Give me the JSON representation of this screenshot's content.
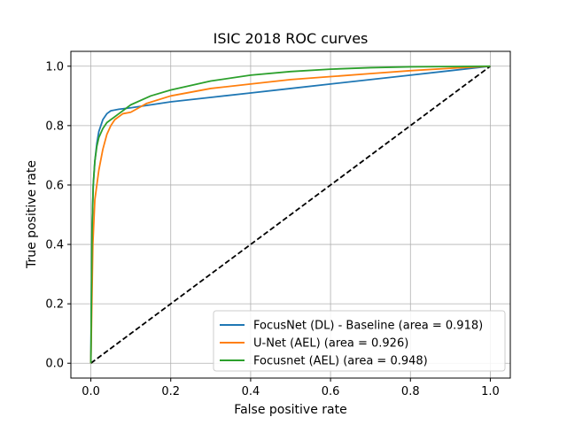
{
  "chart_data": {
    "type": "line",
    "title": "ISIC 2018 ROC curves",
    "xlabel": "False positive rate",
    "ylabel": "True positive rate",
    "xlim": [
      -0.05,
      1.05
    ],
    "ylim": [
      -0.05,
      1.05
    ],
    "xticks": [
      0.0,
      0.2,
      0.4,
      0.6,
      0.8,
      1.0
    ],
    "yticks": [
      0.0,
      0.2,
      0.4,
      0.6,
      0.8,
      1.0
    ],
    "xtick_labels": [
      "0.0",
      "0.2",
      "0.4",
      "0.6",
      "0.8",
      "1.0"
    ],
    "ytick_labels": [
      "0.0",
      "0.2",
      "0.4",
      "0.6",
      "0.8",
      "1.0"
    ],
    "grid": true,
    "legend_position": "lower-right",
    "series": [
      {
        "name": "FocusNet (DL) - Baseline (area = 0.918)",
        "color": "#1f77b4",
        "x": [
          0.0,
          0.003,
          0.006,
          0.01,
          0.015,
          0.02,
          0.03,
          0.04,
          0.05,
          0.07,
          0.1,
          0.15,
          0.2,
          0.3,
          0.4,
          0.5,
          0.6,
          0.7,
          0.8,
          0.9,
          1.0
        ],
        "y": [
          0.0,
          0.45,
          0.6,
          0.68,
          0.74,
          0.78,
          0.82,
          0.84,
          0.85,
          0.855,
          0.86,
          0.87,
          0.88,
          0.895,
          0.91,
          0.925,
          0.94,
          0.955,
          0.97,
          0.985,
          1.0
        ]
      },
      {
        "name": "U-Net (AEL) (area = 0.926)",
        "color": "#ff7f0e",
        "x": [
          0.0,
          0.005,
          0.01,
          0.02,
          0.03,
          0.04,
          0.05,
          0.06,
          0.08,
          0.1,
          0.12,
          0.14,
          0.2,
          0.3,
          0.4,
          0.5,
          0.6,
          0.7,
          0.8,
          0.9,
          1.0
        ],
        "y": [
          0.0,
          0.4,
          0.55,
          0.65,
          0.72,
          0.77,
          0.8,
          0.82,
          0.84,
          0.845,
          0.86,
          0.875,
          0.9,
          0.925,
          0.94,
          0.955,
          0.965,
          0.975,
          0.985,
          0.993,
          1.0
        ]
      },
      {
        "name": "Focusnet (AEL) (area = 0.948)",
        "color": "#2ca02c",
        "x": [
          0.0,
          0.003,
          0.006,
          0.01,
          0.015,
          0.02,
          0.03,
          0.04,
          0.05,
          0.07,
          0.1,
          0.15,
          0.2,
          0.3,
          0.4,
          0.5,
          0.6,
          0.7,
          0.8,
          0.9,
          1.0
        ],
        "y": [
          0.0,
          0.45,
          0.6,
          0.68,
          0.73,
          0.76,
          0.79,
          0.81,
          0.82,
          0.84,
          0.87,
          0.9,
          0.92,
          0.95,
          0.97,
          0.982,
          0.99,
          0.995,
          0.998,
          0.999,
          1.0
        ]
      }
    ],
    "reference_line": {
      "style": "dashed",
      "color": "#000000",
      "x": [
        0.0,
        1.0
      ],
      "y": [
        0.0,
        1.0
      ]
    }
  }
}
